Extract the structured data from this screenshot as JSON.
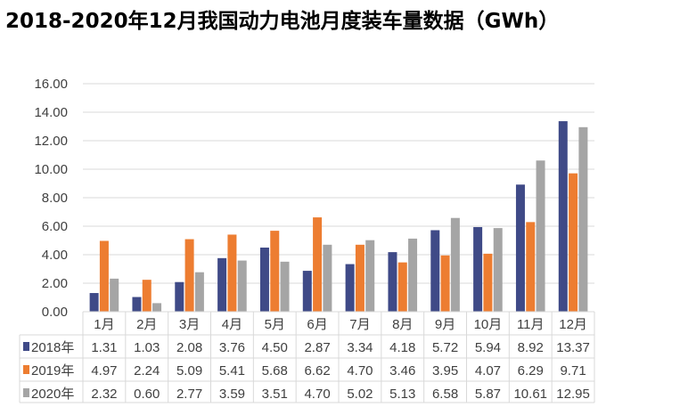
{
  "chart_data": {
    "type": "bar",
    "title": "2018-2020年12月我国动力电池月度装车量数据（GWh）",
    "categories": [
      "1月",
      "2月",
      "3月",
      "4月",
      "5月",
      "6月",
      "7月",
      "8月",
      "9月",
      "10月",
      "11月",
      "12月"
    ],
    "series": [
      {
        "name": "2018年",
        "color": "#3f4a87",
        "values": [
          1.31,
          1.03,
          2.08,
          3.76,
          4.5,
          2.87,
          3.34,
          4.18,
          5.72,
          5.94,
          8.92,
          13.37
        ]
      },
      {
        "name": "2019年",
        "color": "#ed7d31",
        "values": [
          4.97,
          2.24,
          5.09,
          5.41,
          5.68,
          6.62,
          4.7,
          3.46,
          3.95,
          4.07,
          6.29,
          9.71
        ]
      },
      {
        "name": "2020年",
        "color": "#a5a5a5",
        "values": [
          2.32,
          0.6,
          2.77,
          3.59,
          3.51,
          4.7,
          5.02,
          5.13,
          6.58,
          5.87,
          10.61,
          12.95
        ]
      }
    ],
    "yticks": [
      "0.00",
      "2.00",
      "4.00",
      "6.00",
      "8.00",
      "10.00",
      "12.00",
      "14.00",
      "16.00"
    ],
    "ylim": [
      0,
      16
    ],
    "grid": true,
    "legend": "data-table"
  }
}
